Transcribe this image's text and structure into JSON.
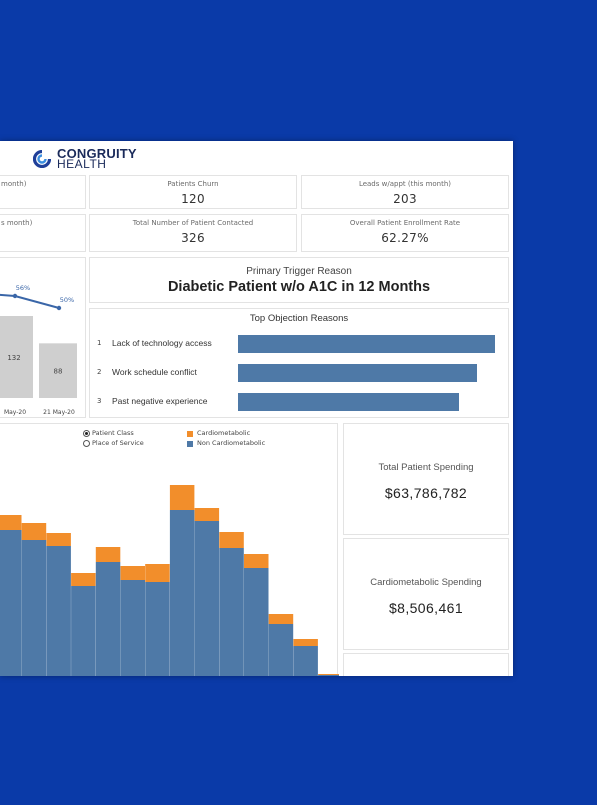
{
  "logo": {
    "line1": "CONGRUITY",
    "line2": "HEALTH"
  },
  "kpis": {
    "row1": [
      {
        "label": "month)",
        "value": ""
      },
      {
        "label": "Patients Churn",
        "value": "120"
      },
      {
        "label": "Leads w/appt (this month)",
        "value": "203"
      }
    ],
    "row2": [
      {
        "label": "s month)",
        "value": ""
      },
      {
        "label": "Total Number of Patient Contacted",
        "value": "326"
      },
      {
        "label": "Overall Patient Enrollment Rate",
        "value": "62.27%"
      }
    ]
  },
  "trigger": {
    "label": "Primary Trigger Reason",
    "value": "Diabetic Patient w/o A1C in 12 Months"
  },
  "objections": {
    "title": "Top Objection Reasons",
    "items": [
      {
        "rank": "1",
        "label": "Lack of technology access",
        "share": 1.0
      },
      {
        "rank": "2",
        "label": "Work schedule conflict",
        "share": 0.93
      },
      {
        "rank": "3",
        "label": "Past negative experience",
        "share": 0.86
      }
    ]
  },
  "spending": {
    "total": {
      "label": "Total Patient Spending",
      "value": "$63,786,782"
    },
    "cardio": {
      "label": "Cardiometabolic Spending",
      "value": "$8,506,461"
    }
  },
  "toggle": {
    "options": [
      {
        "label": "Patient Class",
        "selected": true
      },
      {
        "label": "Place of Service",
        "selected": false
      }
    ]
  },
  "colors": {
    "blue": "#4e79a7",
    "orange": "#f28e2b",
    "gray": "#cfcfcf",
    "background": "#0a3aa8"
  },
  "chart_data": [
    {
      "type": "bar",
      "categories": [
        "",
        "May-20",
        "21 May-20"
      ],
      "values": [
        null,
        132,
        88
      ],
      "line_values": [
        null,
        56,
        50
      ],
      "line_labels": [
        "",
        "56%",
        "50%"
      ],
      "data_labels": [
        "",
        "132",
        "88"
      ]
    },
    {
      "type": "bar",
      "stacked": true,
      "series": [
        {
          "name": "Non Cardiometabolic",
          "values": [
            148,
            138,
            132,
            92,
            116,
            98,
            96,
            168,
            157,
            130,
            110,
            54,
            32,
            3
          ]
        },
        {
          "name": "Cardiometabolic",
          "values": [
            15,
            17,
            13,
            13,
            15,
            14,
            18,
            25,
            13,
            16,
            14,
            10,
            7,
            1
          ]
        }
      ],
      "ylim": [
        0,
        200
      ]
    }
  ]
}
